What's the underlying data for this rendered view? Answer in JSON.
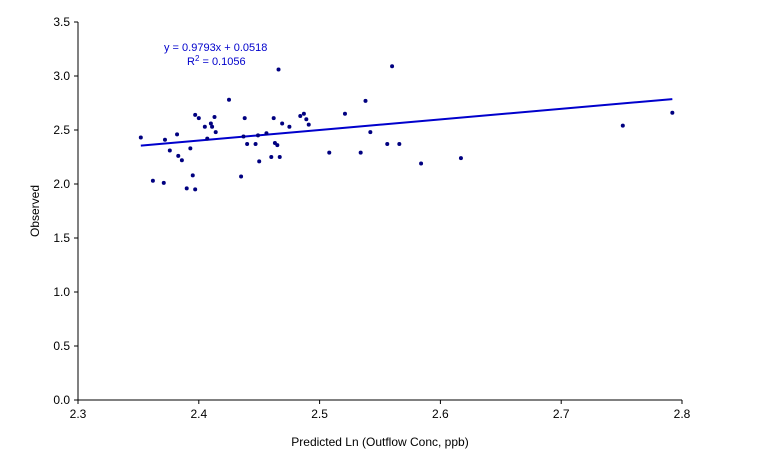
{
  "chart_data": {
    "type": "scatter",
    "title": "",
    "xlabel": "Predicted Ln (Outflow Conc, ppb)",
    "ylabel": "Observed",
    "xlim": [
      2.3,
      2.8
    ],
    "ylim": [
      0.0,
      3.5
    ],
    "x_ticks": [
      2.3,
      2.4,
      2.5,
      2.6,
      2.7,
      2.8
    ],
    "y_ticks": [
      0.0,
      0.5,
      1.0,
      1.5,
      2.0,
      2.5,
      3.0,
      3.5
    ],
    "x_tick_labels": [
      "2.3",
      "2.4",
      "2.5",
      "2.6",
      "2.7",
      "2.8"
    ],
    "y_tick_labels": [
      "0.0",
      "0.5",
      "1.0",
      "1.5",
      "2.0",
      "2.5",
      "3.0",
      "3.5"
    ],
    "grid": false,
    "legend": "none",
    "point_color": "#000080",
    "trendline_color": "#0000CC",
    "equation_color": "#0000CC",
    "series": [
      {
        "points": [
          [
            2.352,
            2.43
          ],
          [
            2.362,
            2.03
          ],
          [
            2.371,
            2.01
          ],
          [
            2.372,
            2.41
          ],
          [
            2.376,
            2.31
          ],
          [
            2.39,
            1.96
          ],
          [
            2.395,
            2.08
          ],
          [
            2.397,
            1.95
          ],
          [
            2.435,
            2.07
          ],
          [
            2.437,
            2.44
          ],
          [
            2.44,
            2.37
          ],
          [
            2.447,
            2.37
          ],
          [
            2.45,
            2.21
          ],
          [
            2.456,
            2.47
          ],
          [
            2.46,
            2.25
          ],
          [
            2.463,
            2.38
          ],
          [
            2.465,
            2.36
          ],
          [
            2.466,
            3.06
          ],
          [
            2.467,
            2.25
          ],
          [
            2.382,
            2.46
          ],
          [
            2.383,
            2.26
          ],
          [
            2.386,
            2.22
          ],
          [
            2.393,
            2.33
          ],
          [
            2.397,
            2.64
          ],
          [
            2.4,
            2.61
          ],
          [
            2.405,
            2.53
          ],
          [
            2.407,
            2.42
          ],
          [
            2.41,
            2.56
          ],
          [
            2.411,
            2.53
          ],
          [
            2.413,
            2.62
          ],
          [
            2.414,
            2.48
          ],
          [
            2.425,
            2.78
          ],
          [
            2.438,
            2.61
          ],
          [
            2.449,
            2.45
          ],
          [
            2.462,
            2.61
          ],
          [
            2.469,
            2.56
          ],
          [
            2.475,
            2.53
          ],
          [
            2.484,
            2.63
          ],
          [
            2.487,
            2.65
          ],
          [
            2.489,
            2.6
          ],
          [
            2.491,
            2.55
          ],
          [
            2.508,
            2.29
          ],
          [
            2.521,
            2.65
          ],
          [
            2.534,
            2.29
          ],
          [
            2.538,
            2.77
          ],
          [
            2.542,
            2.48
          ],
          [
            2.556,
            2.37
          ],
          [
            2.56,
            3.09
          ],
          [
            2.584,
            2.19
          ],
          [
            2.566,
            2.37
          ],
          [
            2.617,
            2.24
          ],
          [
            2.751,
            2.54
          ],
          [
            2.792,
            2.66
          ]
        ]
      }
    ],
    "trendline": {
      "slope": 0.9793,
      "intercept": 0.0518,
      "x_from": 2.352,
      "x_to": 2.792
    },
    "annotation": {
      "equation": "y = 0.9793x + 0.0518",
      "r2_prefix": "R",
      "r2_sup": "2",
      "r2_suffix": " = 0.1056"
    }
  }
}
